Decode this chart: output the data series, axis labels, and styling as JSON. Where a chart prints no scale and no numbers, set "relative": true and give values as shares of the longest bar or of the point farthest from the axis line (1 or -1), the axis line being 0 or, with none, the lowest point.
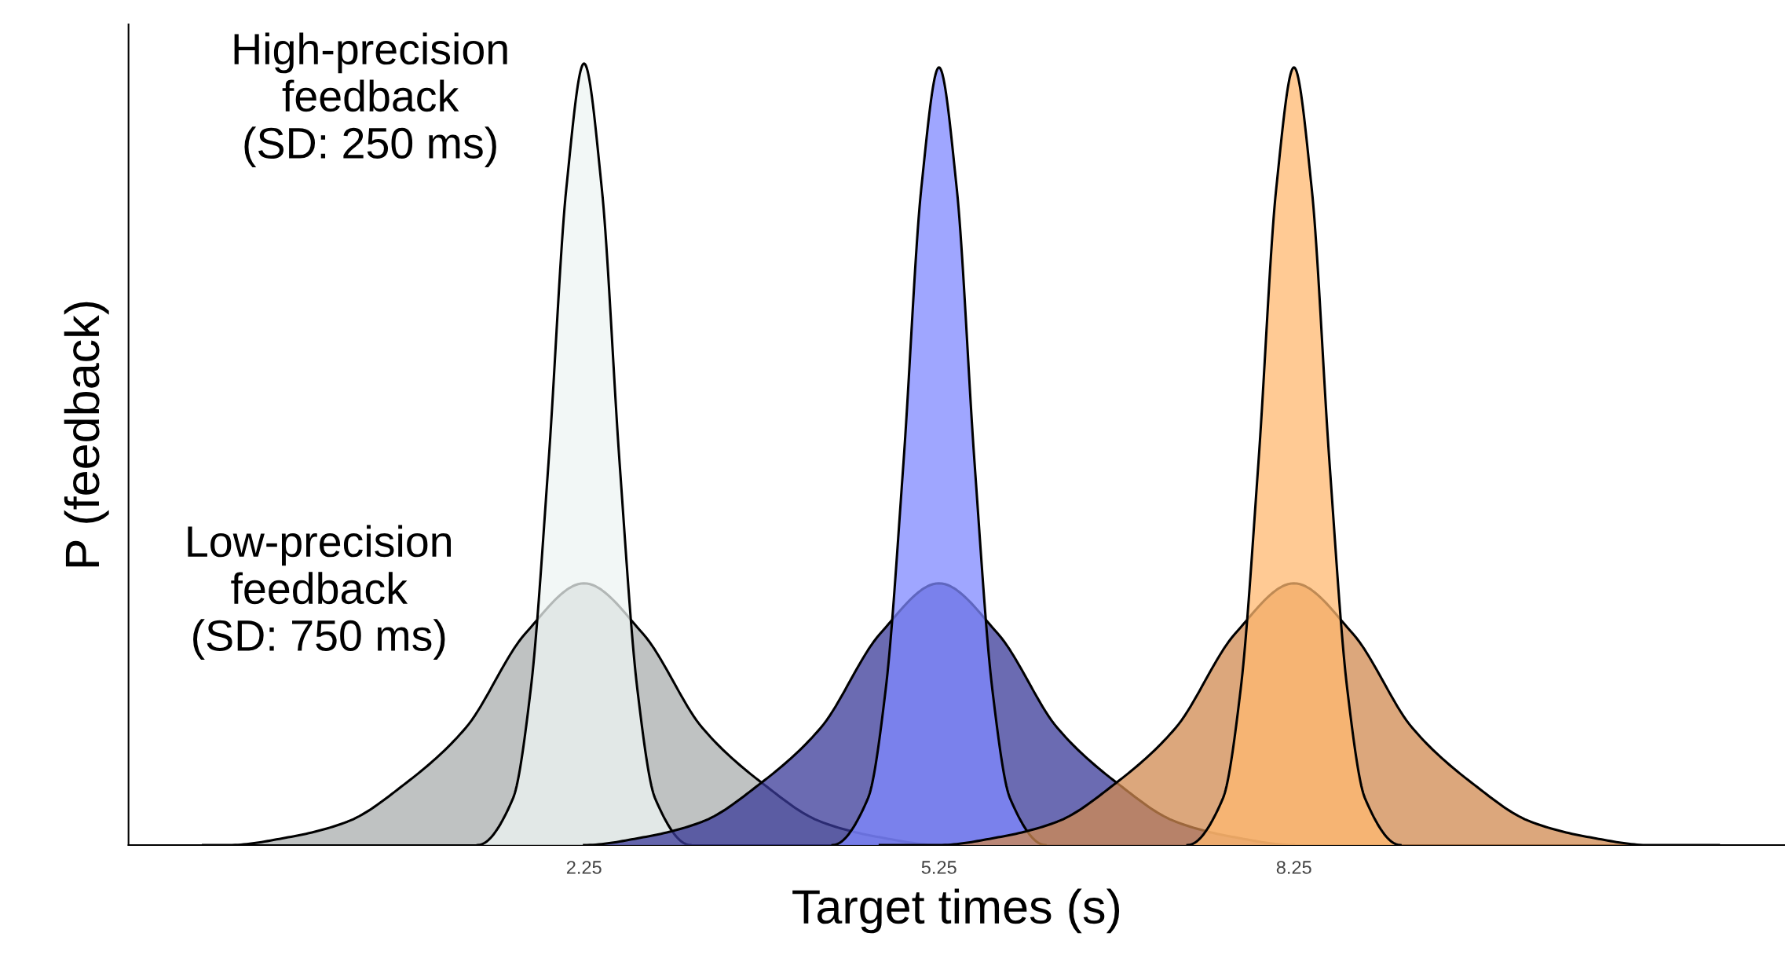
{
  "chart_data": {
    "type": "area",
    "relative": true,
    "xlabel": "Target times (s)",
    "ylabel": "P (feedback)",
    "xlim": [
      -1.6,
      12.4
    ],
    "xticks": [
      2.25,
      5.25,
      8.25
    ],
    "grid": false,
    "legend": false,
    "line_style": "solid",
    "marker": "none",
    "annotations": [
      "High-precision\nfeedback\n(SD: 250 ms)",
      "Low-precision\nfeedback\n(SD: 750 ms)"
    ],
    "series": [
      {
        "color": "#a9adad",
        "x": [
          -0.97,
          -0.75,
          -0.25,
          0.25,
          0.75,
          1.25,
          1.75,
          2.25,
          2.75,
          3.25,
          3.75,
          4.25,
          4.75,
          5.25,
          5.75
        ],
        "values": [
          0,
          0,
          0.01,
          0.03,
          0.08,
          0.15,
          0.27,
          0.335,
          0.27,
          0.15,
          0.08,
          0.03,
          0.01,
          0,
          0
        ]
      },
      {
        "color": "#eef4f3",
        "x": [
          1.35,
          1.65,
          1.8,
          1.95,
          2.1,
          2.25,
          2.4,
          2.55,
          2.7,
          2.85,
          3.15
        ],
        "values": [
          0,
          0.06,
          0.2,
          0.49,
          0.84,
          1,
          0.84,
          0.49,
          0.2,
          0.06,
          0
        ]
      },
      {
        "color": "#3a3a98",
        "x": [
          2.25,
          2.75,
          3.25,
          3.75,
          4.25,
          4.75,
          5.25,
          5.75,
          6.25,
          6.75,
          7.25,
          7.75,
          8.25
        ],
        "values": [
          0,
          0.01,
          0.03,
          0.08,
          0.15,
          0.27,
          0.335,
          0.27,
          0.15,
          0.08,
          0.03,
          0.01,
          0
        ]
      },
      {
        "color": "#7f88ff",
        "x": [
          4.35,
          4.65,
          4.8,
          4.95,
          5.1,
          5.25,
          5.4,
          5.55,
          5.7,
          5.85,
          6.15
        ],
        "values": [
          0,
          0.06,
          0.2,
          0.49,
          0.84,
          0.995,
          0.84,
          0.49,
          0.2,
          0.06,
          0
        ]
      },
      {
        "color": "#d08a50",
        "x": [
          4.75,
          5.25,
          5.75,
          6.25,
          6.75,
          7.25,
          7.75,
          8.25,
          8.75,
          9.25,
          9.75,
          10.25,
          10.75,
          11.25,
          11.84
        ],
        "values": [
          0,
          0,
          0.01,
          0.03,
          0.08,
          0.15,
          0.27,
          0.335,
          0.27,
          0.15,
          0.08,
          0.03,
          0.01,
          0,
          0
        ]
      },
      {
        "color": "#ffb870",
        "x": [
          7.35,
          7.65,
          7.8,
          7.95,
          8.1,
          8.25,
          8.4,
          8.55,
          8.7,
          8.85,
          9.15
        ],
        "values": [
          0,
          0.06,
          0.2,
          0.49,
          0.84,
          0.995,
          0.84,
          0.49,
          0.2,
          0.06,
          0
        ]
      }
    ]
  }
}
